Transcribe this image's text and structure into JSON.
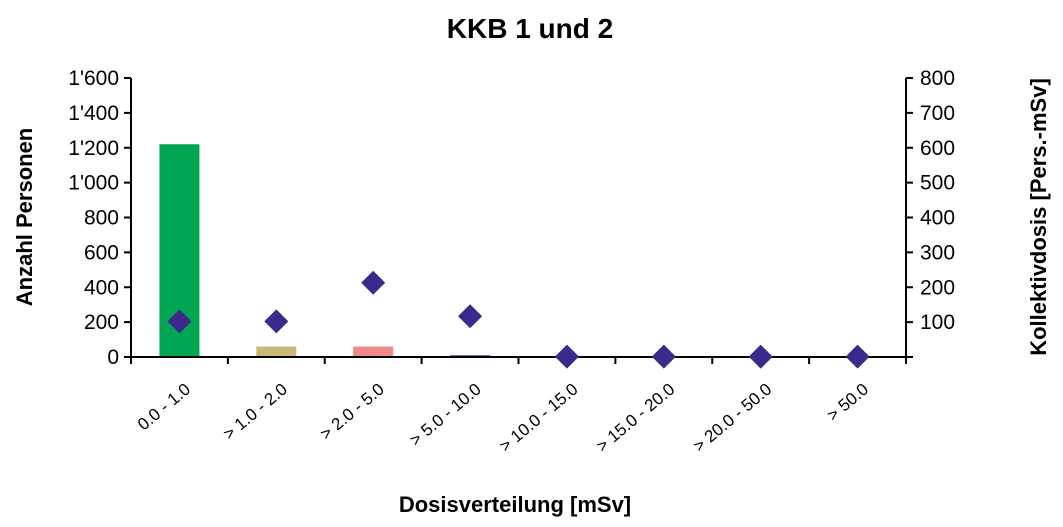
{
  "chart_data": {
    "type": "bar",
    "title": "KKB 1 und 2",
    "xlabel": "Dosisverteilung [mSv]",
    "ylabel": "Anzahl Personen",
    "y2label": "Kollektivdosis [Pers.-mSv]",
    "categories": [
      "0.0 - 1.0",
      "> 1.0 - 2.0",
      "> 2.0 - 5.0",
      "> 5.0 - 10.0",
      "> 10.0 - 15.0",
      "> 15.0 - 20.0",
      "> 20.0 - 50.0",
      "> 50.0"
    ],
    "ylim": [
      0,
      1600
    ],
    "y2lim": [
      0,
      800
    ],
    "yticks": [
      "0",
      "200",
      "400",
      "600",
      "800",
      "1'000",
      "1'200",
      "1'400",
      "1'600"
    ],
    "y2ticks": [
      "100",
      "200",
      "300",
      "400",
      "500",
      "600",
      "700",
      "800"
    ],
    "y2tick_values": [
      100,
      200,
      300,
      400,
      500,
      600,
      700,
      800
    ],
    "grid": false,
    "series": [
      {
        "type": "bar",
        "axis": "left",
        "values": [
          1220,
          60,
          60,
          10,
          0,
          0,
          0,
          0
        ],
        "colors": [
          "#00A651",
          "#C8B87A",
          "#F08A8A",
          "#2F4FA0",
          "#2F4FA0",
          "#2F4FA0",
          "#2F4FA0",
          "#2F4FA0"
        ]
      },
      {
        "type": "scatter",
        "axis": "right",
        "marker": "diamond",
        "color": "#3B2A8C",
        "values": [
          102,
          102,
          213,
          117,
          1,
          1,
          1,
          1
        ]
      }
    ]
  }
}
